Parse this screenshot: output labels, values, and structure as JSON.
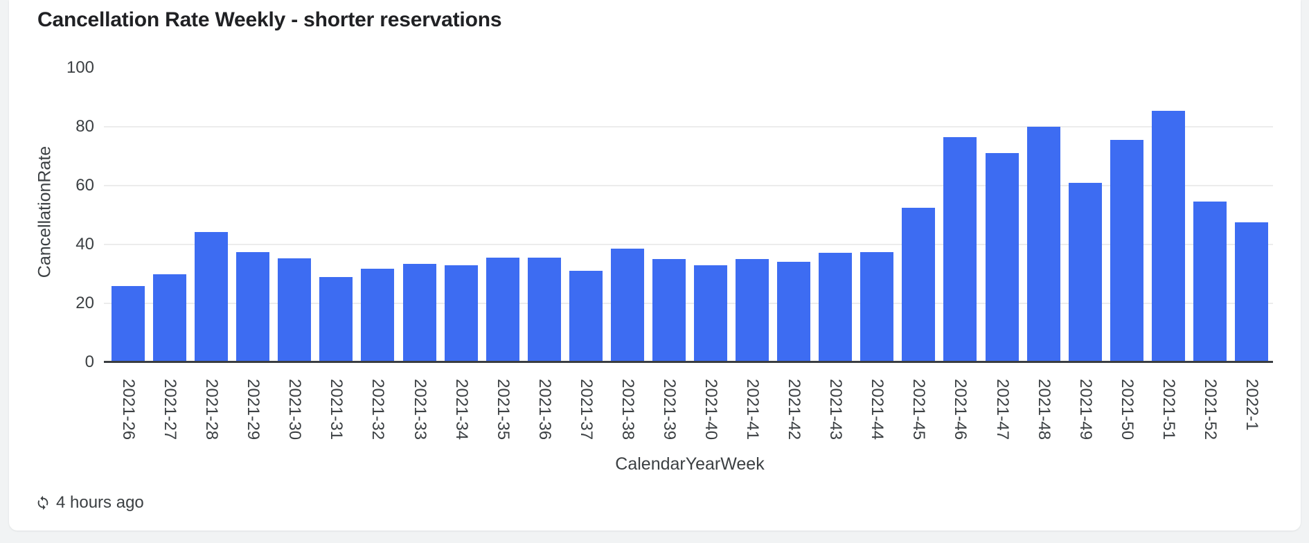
{
  "card": {
    "title": "Cancellation Rate Weekly - shorter reservations",
    "footer": {
      "icon": "sync-icon",
      "refreshed_text": "4 hours ago"
    }
  },
  "colors": {
    "page_background": "#f1f3f4",
    "card_background": "#ffffff",
    "title_text": "#202124",
    "axis_text": "#3c4043",
    "gridline": "#ececec",
    "axis_line": "#3a3d41",
    "bar": "#3d6cf2"
  },
  "chart_data": {
    "type": "bar",
    "title": "Cancellation Rate Weekly - shorter reservations",
    "xlabel": "CalendarYearWeek",
    "ylabel": "CancellationRate",
    "ylim": [
      0,
      100
    ],
    "yticks": [
      0,
      20,
      40,
      60,
      80,
      100
    ],
    "grid_lines": [
      20,
      40,
      60,
      80
    ],
    "legend": "none",
    "categories": [
      "2021-26",
      "2021-27",
      "2021-28",
      "2021-29",
      "2021-30",
      "2021-31",
      "2021-32",
      "2021-33",
      "2021-34",
      "2021-35",
      "2021-36",
      "2021-37",
      "2021-38",
      "2021-39",
      "2021-40",
      "2021-41",
      "2021-42",
      "2021-43",
      "2021-44",
      "2021-45",
      "2021-46",
      "2021-47",
      "2021-48",
      "2021-49",
      "2021-50",
      "2021-51",
      "2021-52",
      "2022-1"
    ],
    "values": [
      25.7,
      29.9,
      44.2,
      37.4,
      35.3,
      28.9,
      31.7,
      33.4,
      32.9,
      35.5,
      35.4,
      30.9,
      38.6,
      35.1,
      32.9,
      34.9,
      34.1,
      37.0,
      37.4,
      52.5,
      76.5,
      71.1,
      80.0,
      60.8,
      75.5,
      85.3,
      54.6,
      47.4
    ]
  }
}
